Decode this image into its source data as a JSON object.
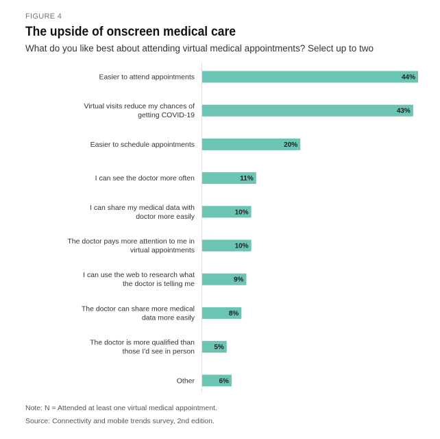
{
  "figure_label": "FIGURE 4",
  "title": "The upside of onscreen medical care",
  "subtitle": "What do you like best about attending virtual medical appointments? Select up to two",
  "note": "Note: N = Attended at least one virtual medical appointment.",
  "source": "Source: Connectivity and mobile trends survey, 2nd edition.",
  "chart_data": {
    "type": "bar",
    "orientation": "horizontal",
    "bar_color": "#6cc4b4",
    "categories": [
      [
        "Easier to attend appointments"
      ],
      [
        "Virtual visits reduce my chances of",
        "getting COVID-19"
      ],
      [
        "Easier to schedule appointments"
      ],
      [
        "I can see the doctor more often"
      ],
      [
        "I can share my medical data with",
        "doctor more easily"
      ],
      [
        "The doctor pays more attention to me in",
        "virtual appointments"
      ],
      [
        "I can use the web to research what",
        "the doctor is telling me"
      ],
      [
        "The doctor can share more medical",
        "data more easily"
      ],
      [
        "The doctor is more qualified than",
        "those I'd see in person"
      ],
      [
        "Other"
      ]
    ],
    "values": [
      44,
      43,
      20,
      11,
      10,
      10,
      9,
      8,
      5,
      6
    ],
    "value_labels": [
      "44%",
      "43%",
      "20%",
      "11%",
      "10%",
      "10%",
      "9%",
      "8%",
      "5%",
      "6%"
    ],
    "unit": "%",
    "xlim": [
      0,
      44
    ],
    "grid": false,
    "legend": "none"
  }
}
